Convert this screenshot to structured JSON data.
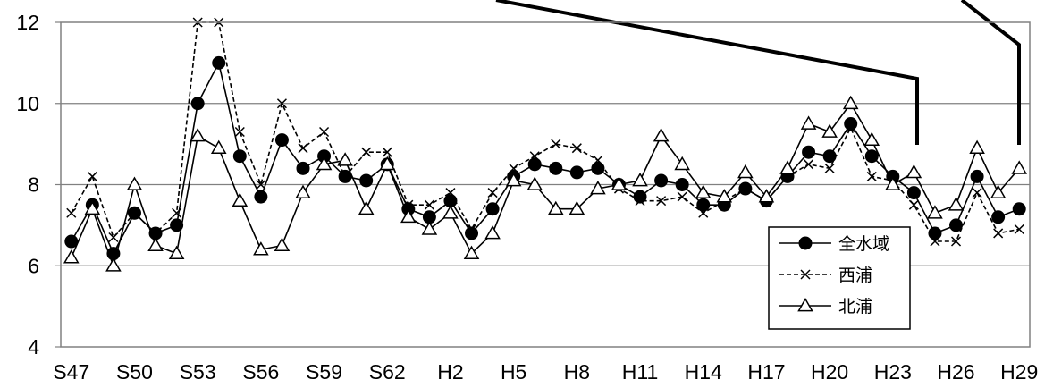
{
  "chart_data": {
    "type": "line",
    "title": "",
    "xlabel": "",
    "ylabel": "",
    "ylim": [
      4,
      12
    ],
    "yticks": [
      4,
      6,
      8,
      10,
      12
    ],
    "grid": "horizontal",
    "legend_position": "bottom-right",
    "x": [
      "S47",
      "S48",
      "S49",
      "S50",
      "S51",
      "S52",
      "S53",
      "S54",
      "S55",
      "S56",
      "S57",
      "S58",
      "S59",
      "S60",
      "S61",
      "S62",
      "S63",
      "H1",
      "H2",
      "H3",
      "H4",
      "H5",
      "H6",
      "H7",
      "H8",
      "H9",
      "H10",
      "H11",
      "H12",
      "H13",
      "H14",
      "H15",
      "H16",
      "H17",
      "H18",
      "H19",
      "H20",
      "H21",
      "H22",
      "H23",
      "H24",
      "H25",
      "H26",
      "H27",
      "H28",
      "H29"
    ],
    "xtick_labels": [
      "S47",
      "S50",
      "S53",
      "S56",
      "S59",
      "S62",
      "H2",
      "H5",
      "H8",
      "H11",
      "H14",
      "H17",
      "H20",
      "H23",
      "H26",
      "H29"
    ],
    "series": [
      {
        "name": "全水域",
        "marker": "filled-circle",
        "line": "solid",
        "values": [
          6.6,
          7.5,
          6.3,
          7.3,
          6.8,
          7.0,
          10.0,
          11.0,
          8.7,
          7.7,
          9.1,
          8.4,
          8.7,
          8.2,
          8.1,
          8.5,
          7.4,
          7.2,
          7.6,
          6.8,
          7.4,
          8.2,
          8.5,
          8.4,
          8.3,
          8.4,
          8.0,
          7.7,
          8.1,
          8.0,
          7.5,
          7.5,
          7.9,
          7.6,
          8.2,
          8.8,
          8.7,
          9.5,
          8.7,
          8.2,
          7.8,
          6.8,
          7.0,
          8.2,
          7.2,
          7.4
        ]
      },
      {
        "name": "西浦",
        "marker": "x",
        "line": "dashed",
        "values": [
          7.3,
          8.2,
          6.7,
          7.3,
          6.8,
          7.3,
          12.0,
          12.0,
          9.3,
          8.0,
          10.0,
          8.9,
          9.3,
          8.2,
          8.8,
          8.8,
          7.5,
          7.5,
          7.8,
          6.9,
          7.8,
          8.4,
          8.7,
          9.0,
          8.9,
          8.6,
          7.9,
          7.6,
          7.6,
          7.7,
          7.3,
          7.6,
          7.9,
          7.6,
          8.2,
          8.5,
          8.4,
          9.4,
          8.2,
          8.1,
          7.5,
          6.6,
          6.6,
          7.8,
          6.8,
          6.9
        ]
      },
      {
        "name": "北浦",
        "marker": "open-triangle",
        "line": "solid",
        "values": [
          6.2,
          7.4,
          6.0,
          8.0,
          6.5,
          6.3,
          9.2,
          8.9,
          7.6,
          6.4,
          6.5,
          7.8,
          8.5,
          8.6,
          7.4,
          8.5,
          7.2,
          6.9,
          7.3,
          6.3,
          6.8,
          8.1,
          8.0,
          7.4,
          7.4,
          7.9,
          8.0,
          8.1,
          9.2,
          8.5,
          7.8,
          7.7,
          8.3,
          7.7,
          8.4,
          9.5,
          9.3,
          10.0,
          9.1,
          8.0,
          8.3,
          7.3,
          7.5,
          8.9,
          7.8,
          8.4
        ]
      }
    ]
  }
}
